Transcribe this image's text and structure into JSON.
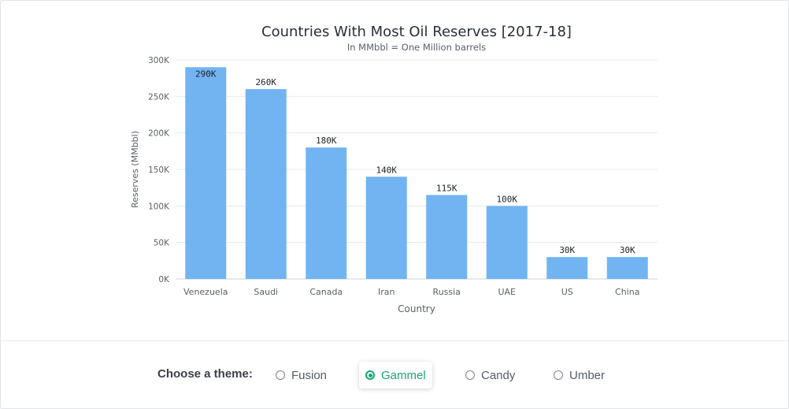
{
  "chart_data": {
    "type": "bar",
    "title": "Countries With Most Oil Reserves [2017-18]",
    "subtitle": "In MMbbl = One Million barrels",
    "xlabel": "Country",
    "ylabel": "Reserves (MMbbl)",
    "categories": [
      "Venezuela",
      "Saudi",
      "Canada",
      "Iran",
      "Russia",
      "UAE",
      "US",
      "China"
    ],
    "values": [
      290,
      260,
      180,
      140,
      115,
      100,
      30,
      30
    ],
    "value_labels": [
      "290K",
      "260K",
      "180K",
      "140K",
      "115K",
      "100K",
      "30K",
      "30K"
    ],
    "y_ticks": [
      0,
      50,
      100,
      150,
      200,
      250,
      300
    ],
    "y_tick_labels": [
      "0K",
      "50K",
      "100K",
      "150K",
      "200K",
      "250K",
      "300K"
    ],
    "ylim": [
      0,
      300
    ],
    "grid": true,
    "bar_color": "#72b4f2"
  },
  "theme_picker": {
    "label": "Choose a theme:",
    "options": [
      {
        "label": "Fusion",
        "selected": false
      },
      {
        "label": "Gammel",
        "selected": true
      },
      {
        "label": "Candy",
        "selected": false
      },
      {
        "label": "Umber",
        "selected": false
      }
    ],
    "accent_color": "#1aa37a"
  }
}
